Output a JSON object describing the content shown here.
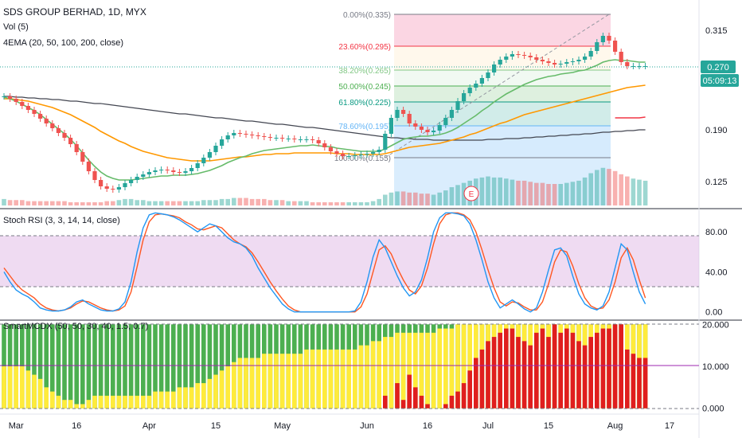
{
  "header": {
    "symbol_line": "SDS GROUP BERHAD, 1D, MYX",
    "vol_label": "Vol (5)",
    "ema_label": "4EMA (20, 50, 100, 200, close)",
    "stoch_label": "Stoch RSI (3, 3, 14, 14, close)",
    "mcdx_label": "SmartMCDX (50, 50, 30, 40, 1.5, 0.7)"
  },
  "price_axis": {
    "ticks": [
      "0.315",
      "0.190",
      "0.125"
    ],
    "tick_values": [
      0.315,
      0.19,
      0.125
    ],
    "last_price_label": "0.270",
    "countdown_label": "05:09:13",
    "last_price": 0.27
  },
  "stoch_axis": {
    "ticks": [
      "80.00",
      "40.00",
      "0.00"
    ],
    "tick_values": [
      80,
      40,
      0
    ]
  },
  "mcdx_axis": {
    "ticks": [
      "20.000",
      "10.000",
      "0.000"
    ],
    "tick_values": [
      20,
      10,
      0
    ]
  },
  "x_axis": {
    "labels": [
      "Mar",
      "16",
      "Apr",
      "15",
      "May",
      "Jun",
      "16",
      "Jul",
      "15",
      "Aug",
      "17"
    ],
    "label_bars": [
      2,
      12,
      24,
      35,
      46,
      60,
      70,
      80,
      90,
      101,
      110
    ]
  },
  "fib": {
    "labels": [
      "0.00%(0.335)",
      "23.60%(0.295)",
      "38.20%(0.265)",
      "50.00%(0.245)",
      "61.80%(0.225)",
      "78.60%(0.195)",
      "100.00%(0.155)"
    ],
    "levels": [
      0.335,
      0.295,
      0.265,
      0.245,
      0.225,
      0.195,
      0.155
    ],
    "label_colors": [
      "#787b86",
      "#f23645",
      "#81c784",
      "#4caf50",
      "#089981",
      "#64b5f6",
      "#787b86"
    ]
  },
  "earnings_marker": "E",
  "colors": {
    "candle_up": "#26a69a",
    "candle_down": "#ef5350",
    "ema20": "#66bb6a",
    "ema50": "#ff9800",
    "ema100": "#f23645",
    "ema200": "#434651",
    "stoch_k": "#2196f3",
    "stoch_d": "#ff5722",
    "stoch_band": "#e1bee7",
    "mcdx_green": "#4caf50",
    "mcdx_yellow": "#ffeb3b",
    "mcdx_red": "#e01e1e",
    "mcdx_midline": "#9c27b0",
    "price_tag": "#26a69a"
  },
  "chart_data": [
    {
      "type": "candlestick",
      "title": "SDS GROUP BERHAD, 1D, MYX",
      "ylim": [
        0.095,
        0.345
      ],
      "bar_count": 107,
      "closes": [
        0.232,
        0.229,
        0.225,
        0.22,
        0.215,
        0.21,
        0.204,
        0.198,
        0.192,
        0.186,
        0.18,
        0.172,
        0.162,
        0.15,
        0.138,
        0.127,
        0.119,
        0.116,
        0.115,
        0.118,
        0.123,
        0.127,
        0.131,
        0.134,
        0.137,
        0.139,
        0.14,
        0.139,
        0.137,
        0.136,
        0.138,
        0.142,
        0.148,
        0.155,
        0.162,
        0.17,
        0.178,
        0.183,
        0.186,
        0.185,
        0.184,
        0.183,
        0.182,
        0.181,
        0.18,
        0.18,
        0.179,
        0.179,
        0.178,
        0.178,
        0.178,
        0.177,
        0.173,
        0.168,
        0.163,
        0.16,
        0.157,
        0.157,
        0.158,
        0.159,
        0.16,
        0.162,
        0.165,
        0.185,
        0.205,
        0.215,
        0.21,
        0.198,
        0.194,
        0.19,
        0.187,
        0.189,
        0.196,
        0.205,
        0.215,
        0.226,
        0.236,
        0.243,
        0.248,
        0.255,
        0.262,
        0.272,
        0.278,
        0.282,
        0.285,
        0.284,
        0.283,
        0.281,
        0.278,
        0.276,
        0.274,
        0.272,
        0.273,
        0.275,
        0.276,
        0.278,
        0.282,
        0.289,
        0.3,
        0.308,
        0.302,
        0.288,
        0.275,
        0.27,
        0.27,
        0.27,
        0.27
      ],
      "volume": [
        6,
        5,
        5,
        5,
        4,
        4,
        4,
        4,
        4,
        4,
        4,
        3,
        3,
        3,
        3,
        3,
        3,
        4,
        4,
        5,
        6,
        6,
        5,
        5,
        4,
        4,
        4,
        4,
        4,
        4,
        4,
        4,
        4,
        5,
        5,
        5,
        6,
        6,
        7,
        7,
        7,
        6,
        6,
        6,
        5,
        5,
        5,
        4,
        4,
        4,
        4,
        3,
        3,
        3,
        3,
        3,
        3,
        3,
        3,
        3,
        3,
        4,
        6,
        10,
        12,
        13,
        13,
        12,
        12,
        11,
        11,
        10,
        12,
        14,
        17,
        19,
        21,
        23,
        25,
        26,
        27,
        26,
        26,
        25,
        24,
        23,
        23,
        22,
        21,
        21,
        20,
        20,
        20,
        21,
        22,
        23,
        26,
        30,
        33,
        35,
        34,
        32,
        29,
        27,
        25,
        24,
        23
      ],
      "ema20": [
        0.231,
        0.229,
        0.226,
        0.222,
        0.218,
        0.214,
        0.209,
        0.203,
        0.197,
        0.191,
        0.185,
        0.178,
        0.17,
        0.161,
        0.152,
        0.144,
        0.137,
        0.132,
        0.129,
        0.127,
        0.127,
        0.127,
        0.128,
        0.129,
        0.13,
        0.131,
        0.132,
        0.132,
        0.133,
        0.133,
        0.133,
        0.134,
        0.135,
        0.137,
        0.139,
        0.142,
        0.145,
        0.149,
        0.152,
        0.155,
        0.157,
        0.16,
        0.162,
        0.164,
        0.165,
        0.166,
        0.167,
        0.168,
        0.169,
        0.17,
        0.17,
        0.171,
        0.17,
        0.169,
        0.169,
        0.167,
        0.166,
        0.165,
        0.164,
        0.163,
        0.163,
        0.163,
        0.163,
        0.166,
        0.17,
        0.174,
        0.178,
        0.18,
        0.181,
        0.182,
        0.182,
        0.183,
        0.184,
        0.186,
        0.189,
        0.193,
        0.198,
        0.203,
        0.208,
        0.214,
        0.219,
        0.225,
        0.23,
        0.235,
        0.239,
        0.243,
        0.247,
        0.25,
        0.253,
        0.255,
        0.257,
        0.258,
        0.26,
        0.261,
        0.262,
        0.264,
        0.265,
        0.268,
        0.271,
        0.275,
        0.277,
        0.278,
        0.277,
        0.277,
        0.276,
        0.275,
        0.275
      ],
      "ema50": [
        0.229,
        0.229,
        0.228,
        0.227,
        0.226,
        0.224,
        0.222,
        0.22,
        0.218,
        0.215,
        0.212,
        0.209,
        0.205,
        0.201,
        0.197,
        0.193,
        0.188,
        0.184,
        0.18,
        0.176,
        0.173,
        0.169,
        0.166,
        0.163,
        0.161,
        0.159,
        0.157,
        0.155,
        0.154,
        0.153,
        0.152,
        0.151,
        0.151,
        0.151,
        0.151,
        0.152,
        0.153,
        0.154,
        0.155,
        0.156,
        0.156,
        0.157,
        0.158,
        0.159,
        0.159,
        0.16,
        0.16,
        0.16,
        0.161,
        0.161,
        0.161,
        0.161,
        0.161,
        0.161,
        0.161,
        0.16,
        0.16,
        0.16,
        0.159,
        0.159,
        0.159,
        0.159,
        0.159,
        0.16,
        0.162,
        0.164,
        0.166,
        0.168,
        0.169,
        0.17,
        0.171,
        0.172,
        0.173,
        0.175,
        0.177,
        0.179,
        0.181,
        0.184,
        0.186,
        0.189,
        0.192,
        0.195,
        0.198,
        0.2,
        0.203,
        0.206,
        0.209,
        0.211,
        0.213,
        0.215,
        0.217,
        0.219,
        0.221,
        0.223,
        0.225,
        0.227,
        0.229,
        0.231,
        0.233,
        0.235,
        0.237,
        0.239,
        0.241,
        0.243,
        0.244,
        0.245,
        0.246
      ],
      "ema200": [
        0.232,
        0.232,
        0.231,
        0.231,
        0.23,
        0.23,
        0.229,
        0.229,
        0.228,
        0.228,
        0.227,
        0.226,
        0.226,
        0.225,
        0.224,
        0.223,
        0.223,
        0.222,
        0.221,
        0.22,
        0.219,
        0.218,
        0.217,
        0.216,
        0.215,
        0.214,
        0.213,
        0.212,
        0.211,
        0.21,
        0.21,
        0.209,
        0.208,
        0.207,
        0.206,
        0.205,
        0.205,
        0.204,
        0.203,
        0.202,
        0.201,
        0.201,
        0.2,
        0.199,
        0.198,
        0.197,
        0.197,
        0.196,
        0.195,
        0.194,
        0.193,
        0.193,
        0.192,
        0.191,
        0.19,
        0.189,
        0.188,
        0.187,
        0.186,
        0.185,
        0.184,
        0.183,
        0.182,
        0.181,
        0.18,
        0.18,
        0.179,
        0.179,
        0.178,
        0.178,
        0.178,
        0.177,
        0.177,
        0.177,
        0.177,
        0.177,
        0.177,
        0.177,
        0.177,
        0.177,
        0.178,
        0.178,
        0.178,
        0.179,
        0.179,
        0.179,
        0.18,
        0.18,
        0.181,
        0.181,
        0.182,
        0.182,
        0.183,
        0.183,
        0.184,
        0.184,
        0.185,
        0.185,
        0.186,
        0.187,
        0.187,
        0.188,
        0.188,
        0.189,
        0.189,
        0.19,
        0.19
      ],
      "ema100_segment": {
        "start_bar": 101,
        "values": [
          0.205,
          0.205,
          0.205,
          0.205,
          0.205,
          0.206
        ]
      }
    },
    {
      "type": "line",
      "title": "Stoch RSI (3, 3, 14, 14, close)",
      "ylim": [
        -5,
        100
      ],
      "series": [
        {
          "name": "K",
          "values": [
            40,
            30,
            22,
            18,
            15,
            10,
            4,
            2,
            1,
            1,
            2,
            5,
            10,
            12,
            8,
            5,
            2,
            1,
            1,
            3,
            10,
            30,
            60,
            84,
            97,
            99,
            98,
            97,
            95,
            92,
            88,
            84,
            80,
            84,
            88,
            86,
            80,
            74,
            70,
            68,
            64,
            56,
            44,
            34,
            24,
            16,
            8,
            3,
            0,
            0,
            0,
            0,
            0,
            0,
            0,
            0,
            0,
            0,
            1,
            10,
            30,
            55,
            72,
            64,
            50,
            36,
            24,
            16,
            20,
            32,
            54,
            80,
            94,
            99,
            99,
            98,
            96,
            88,
            72,
            52,
            30,
            14,
            4,
            8,
            12,
            8,
            3,
            0,
            4,
            20,
            42,
            62,
            64,
            56,
            36,
            18,
            8,
            4,
            2,
            6,
            20,
            44,
            68,
            62,
            40,
            20,
            8
          ]
        },
        {
          "name": "D",
          "values": [
            44,
            36,
            28,
            22,
            18,
            14,
            8,
            4,
            2,
            1,
            2,
            4,
            8,
            11,
            10,
            7,
            4,
            2,
            1,
            2,
            6,
            20,
            45,
            72,
            90,
            97,
            98,
            97,
            96,
            94,
            90,
            87,
            83,
            82,
            84,
            86,
            84,
            78,
            72,
            68,
            65,
            59,
            50,
            40,
            30,
            21,
            13,
            6,
            2,
            0,
            0,
            0,
            0,
            0,
            0,
            0,
            0,
            0,
            0,
            5,
            18,
            40,
            62,
            66,
            58,
            44,
            32,
            22,
            18,
            26,
            44,
            68,
            88,
            97,
            99,
            99,
            97,
            92,
            80,
            62,
            42,
            24,
            10,
            6,
            10,
            9,
            5,
            2,
            2,
            10,
            28,
            50,
            62,
            60,
            46,
            28,
            14,
            6,
            3,
            4,
            12,
            30,
            54,
            64,
            52,
            32,
            14
          ]
        }
      ],
      "bands": [
        20,
        80
      ]
    },
    {
      "type": "bar",
      "title": "SmartMCDX (50, 50, 30, 40, 1.5, 0.7)",
      "ylim": [
        -1,
        21
      ],
      "series": [
        {
          "name": "red",
          "values": [
            0,
            0,
            0,
            0,
            0,
            0,
            0,
            0,
            0,
            0,
            0,
            0,
            0,
            0,
            0,
            0,
            0,
            0,
            0,
            0,
            0,
            0,
            0,
            0,
            0,
            0,
            0,
            0,
            0,
            0,
            0,
            0,
            0,
            0,
            0,
            0,
            0,
            0,
            0,
            0,
            0,
            0,
            0,
            0,
            0,
            0,
            0,
            0,
            0,
            0,
            0,
            0,
            0,
            0,
            0,
            0,
            0,
            0,
            0,
            0,
            0,
            0,
            0,
            3,
            0,
            6,
            2,
            8,
            5,
            3,
            1,
            0,
            0,
            1,
            3,
            4,
            6,
            9,
            12,
            14,
            16,
            17,
            18,
            19,
            19,
            17,
            16,
            15,
            18,
            19,
            17,
            20,
            18,
            19,
            18,
            16,
            15,
            17,
            18,
            19,
            19,
            20,
            20,
            14,
            13,
            12,
            12
          ]
        },
        {
          "name": "yellow",
          "values": [
            10,
            10,
            10,
            10,
            9,
            8,
            7,
            5,
            4,
            3,
            2,
            2,
            1,
            1,
            2,
            3,
            3,
            3,
            3,
            3,
            3,
            3,
            3,
            3,
            3,
            4,
            4,
            4,
            4,
            5,
            5,
            5,
            6,
            6,
            7,
            8,
            9,
            10,
            11,
            12,
            12,
            12,
            12,
            13,
            13,
            13,
            13,
            13,
            13,
            13,
            14,
            14,
            14,
            14,
            14,
            14,
            14,
            14,
            14,
            15,
            15,
            16,
            16,
            17,
            17,
            18,
            18,
            18,
            18,
            18,
            18,
            18,
            19,
            19,
            19,
            20,
            20,
            20,
            20,
            20,
            20,
            20,
            20,
            20,
            20,
            20,
            20,
            20,
            20,
            20,
            20,
            20,
            20,
            20,
            20,
            20,
            20,
            20,
            20,
            20,
            20,
            20,
            20,
            20,
            20,
            20,
            20
          ]
        },
        {
          "name": "green",
          "values": [
            20,
            20,
            20,
            20,
            20,
            20,
            20,
            20,
            20,
            20,
            20,
            20,
            20,
            20,
            20,
            20,
            20,
            20,
            20,
            20,
            20,
            20,
            20,
            20,
            20,
            20,
            20,
            20,
            20,
            20,
            20,
            20,
            20,
            20,
            20,
            20,
            20,
            20,
            20,
            20,
            20,
            20,
            20,
            20,
            20,
            20,
            20,
            20,
            20,
            20,
            20,
            20,
            20,
            20,
            20,
            20,
            20,
            20,
            20,
            20,
            20,
            20,
            20,
            20,
            20,
            20,
            20,
            20,
            20,
            20,
            20,
            20,
            20,
            20,
            20,
            20,
            20,
            20,
            20,
            20,
            20,
            20,
            20,
            20,
            20,
            20,
            20,
            20,
            20,
            20,
            20,
            20,
            20,
            20,
            20,
            20,
            20,
            20,
            20,
            20,
            20,
            20,
            20,
            20,
            20,
            20,
            20
          ]
        }
      ],
      "midline": 10
    }
  ]
}
